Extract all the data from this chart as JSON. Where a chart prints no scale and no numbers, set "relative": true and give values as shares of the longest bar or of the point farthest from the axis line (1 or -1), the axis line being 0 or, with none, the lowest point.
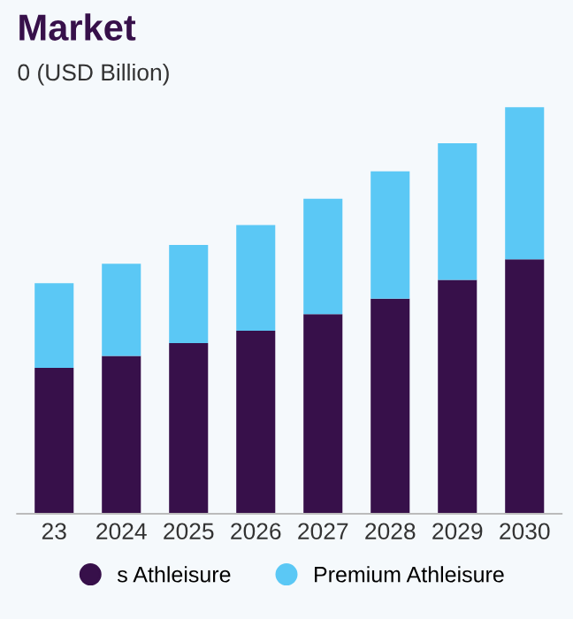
{
  "chart_data": {
    "type": "bar",
    "title": "Market",
    "subtitle": "0 (USD Billion)",
    "categories": [
      "23",
      "2024",
      "2025",
      "2026",
      "2027",
      "2028",
      "2029",
      "2030"
    ],
    "stacked": true,
    "relative": true,
    "legend": "bottom",
    "grid": false,
    "series": [
      {
        "name": "s Athleisure",
        "color": "#37104a",
        "values": [
          0.359,
          0.388,
          0.42,
          0.45,
          0.491,
          0.529,
          0.575,
          0.626
        ]
      },
      {
        "name": "Premium Athleisure",
        "color": "#5bc8f5",
        "values": [
          0.208,
          0.227,
          0.241,
          0.26,
          0.284,
          0.313,
          0.336,
          0.374
        ]
      }
    ]
  }
}
